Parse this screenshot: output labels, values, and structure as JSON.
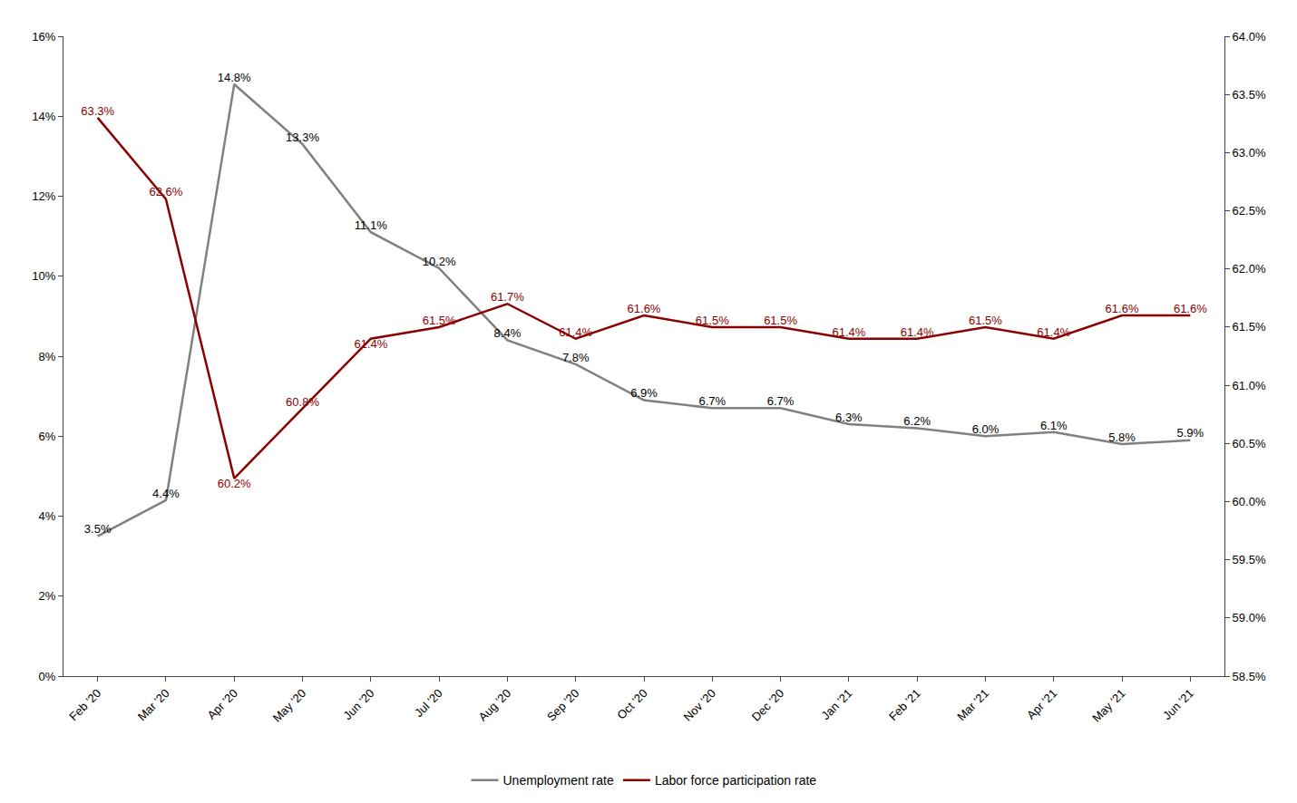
{
  "chart_data": {
    "type": "line",
    "categories": [
      "Feb '20",
      "Mar '20",
      "Apr '20",
      "May '20",
      "Jun '20",
      "Jul '20",
      "Aug '20",
      "Sep '20",
      "Oct '20",
      "Nov '20",
      "Dec '20",
      "Jan '21",
      "Feb '21",
      "Mar '21",
      "Apr '21",
      "May '21",
      "Jun '21"
    ],
    "series": [
      {
        "name": "Unemployment rate",
        "color": "#808080",
        "values": [
          3.5,
          4.4,
          14.8,
          13.3,
          11.1,
          10.2,
          8.4,
          7.8,
          6.9,
          6.7,
          6.7,
          6.3,
          6.2,
          6.0,
          6.1,
          5.8,
          5.9
        ],
        "value_labels": [
          "3.5%",
          "4.4%",
          "14.8%",
          "13.3%",
          "11.1%",
          "10.2%",
          "8.4%",
          "7.8%",
          "6.9%",
          "6.7%",
          "6.7%",
          "6.3%",
          "6.2%",
          "6.0%",
          "6.1%",
          "5.8%",
          "5.9%"
        ]
      },
      {
        "name": "Labor force participation rate",
        "color": "#8B0000",
        "axis": "y2",
        "values": [
          63.3,
          62.6,
          60.2,
          60.8,
          61.4,
          61.5,
          61.7,
          61.4,
          61.6,
          61.5,
          61.5,
          61.4,
          61.4,
          61.5,
          61.4,
          61.6,
          61.6
        ],
        "value_labels": [
          "63.3%",
          "62.6%",
          "60.2%",
          "60.8%",
          "61.4%",
          "61.5%",
          "61.7%",
          "61.4%",
          "61.6%",
          "61.5%",
          "61.5%",
          "61.4%",
          "61.4%",
          "61.5%",
          "61.4%",
          "61.6%",
          "61.6%"
        ]
      }
    ],
    "ylim": [
      0,
      16
    ],
    "yticks": [
      {
        "value": 0,
        "label": "0%"
      },
      {
        "value": 2,
        "label": "2%"
      },
      {
        "value": 4,
        "label": "4%"
      },
      {
        "value": 6,
        "label": "6%"
      },
      {
        "value": 8,
        "label": "8%"
      },
      {
        "value": 10,
        "label": "10%"
      },
      {
        "value": 12,
        "label": "12%"
      },
      {
        "value": 14,
        "label": "14%"
      },
      {
        "value": 16,
        "label": "16%"
      }
    ],
    "y2lim": [
      58.5,
      64.0
    ],
    "y2ticks": [
      {
        "value": 58.5,
        "label": "58.5%"
      },
      {
        "value": 59.0,
        "label": "59.0%"
      },
      {
        "value": 59.5,
        "label": "59.5%"
      },
      {
        "value": 60.0,
        "label": "60.0%"
      },
      {
        "value": 60.5,
        "label": "60.5%"
      },
      {
        "value": 61.0,
        "label": "61.0%"
      },
      {
        "value": 61.5,
        "label": "61.5%"
      },
      {
        "value": 62.0,
        "label": "62.0%"
      },
      {
        "value": 62.5,
        "label": "62.5%"
      },
      {
        "value": 63.0,
        "label": "63.0%"
      },
      {
        "value": 63.5,
        "label": "63.5%"
      },
      {
        "value": 64.0,
        "label": "64.0%"
      }
    ],
    "grid": false,
    "legend": "bottom",
    "data_labels": true
  }
}
